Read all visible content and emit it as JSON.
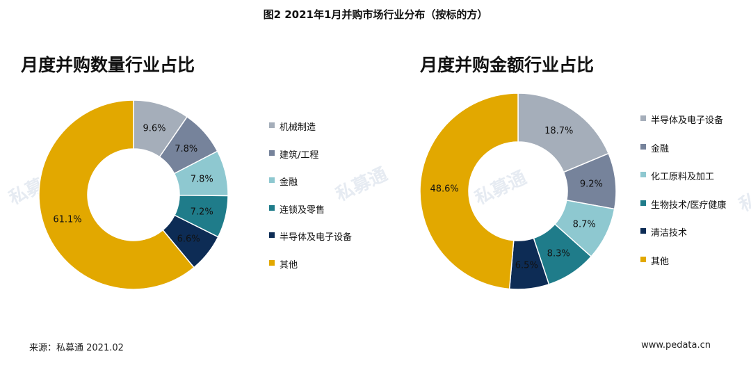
{
  "figure_title": "图2 2021年1月并购市场行业分布（按标的方）",
  "source_text": "来源：私募通 2021.02",
  "site_text": "www.pedata.cn",
  "watermark_text": "私募通",
  "chart_data": [
    {
      "type": "pie",
      "title": "月度并购数量行业占比",
      "categories": [
        "机械制造",
        "建筑/工程",
        "金融",
        "连锁及零售",
        "半导体及电子设备",
        "其他"
      ],
      "values": [
        9.6,
        7.8,
        7.8,
        7.2,
        6.6,
        61.1
      ],
      "labels": [
        "9.6%",
        "7.8%",
        "7.8%",
        "7.2%",
        "6.6%",
        "61.1%"
      ],
      "colors": [
        "#a5aeba",
        "#76839b",
        "#8ec8d0",
        "#1f7c8a",
        "#0d2c55",
        "#e2a800"
      ],
      "legend": "right"
    },
    {
      "type": "pie",
      "title": "月度并购金额行业占比",
      "categories": [
        "半导体及电子设备",
        "金融",
        "化工原料及加工",
        "生物技术/医疗健康",
        "清洁技术",
        "其他"
      ],
      "values": [
        18.7,
        9.2,
        8.7,
        8.3,
        6.5,
        48.6
      ],
      "labels": [
        "18.7%",
        "9.2%",
        "8.7%",
        "8.3%",
        "6.5%",
        "48.6%"
      ],
      "colors": [
        "#a5aeba",
        "#76839b",
        "#8ec8d0",
        "#1f7c8a",
        "#0d2c55",
        "#e2a800"
      ],
      "legend": "right"
    }
  ]
}
